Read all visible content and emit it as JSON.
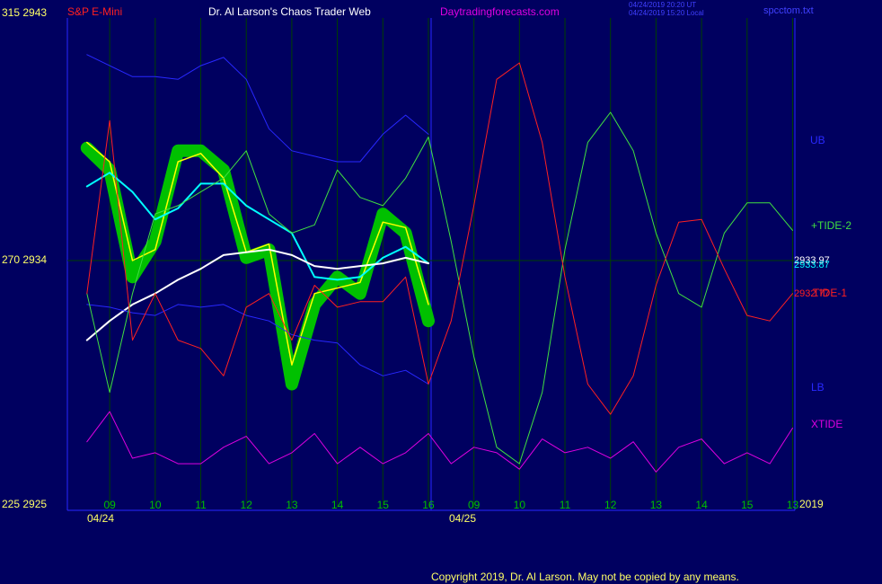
{
  "chart_data": {
    "type": "line",
    "title": "Dr. Al Larson's Chaos Trader Web",
    "symbol": "S&P E-Mini",
    "site": "Daytradingforecasts.com",
    "timestamps": [
      "04/24/2019 20:20 UT",
      "04/24/2019 15:20 Local"
    ],
    "file": "spcctom.txt",
    "copyright": "Copyright 2019, Dr. Al Larson. May not be copied by any means.",
    "dates": [
      "04/24",
      "04/25",
      "2019"
    ],
    "annotations": [
      "2933.97",
      "2933.87",
      "2932.77"
    ],
    "x": [
      -0.5,
      0,
      0.5,
      1,
      1.5,
      2,
      2.5,
      3,
      3.5,
      4,
      4.5,
      5,
      5.5,
      6,
      6.5,
      7,
      7.5,
      8,
      8.5,
      9,
      9.5,
      10,
      10.5,
      11,
      11.5,
      12,
      12.5,
      13,
      13.5,
      14,
      14.5,
      15
    ],
    "xlim": [
      -0.93,
      15.05
    ],
    "xticks": [
      {
        "value": 0,
        "label": "09"
      },
      {
        "value": 1,
        "label": "10"
      },
      {
        "value": 2,
        "label": "11"
      },
      {
        "value": 3,
        "label": "12"
      },
      {
        "value": 4,
        "label": "13"
      },
      {
        "value": 5,
        "label": "14"
      },
      {
        "value": 6,
        "label": "15"
      },
      {
        "value": 7,
        "label": "16"
      },
      {
        "value": 8,
        "label": "09"
      },
      {
        "value": 9,
        "label": "10"
      },
      {
        "value": 10,
        "label": "11"
      },
      {
        "value": 11,
        "label": "12"
      },
      {
        "value": 12,
        "label": "13"
      },
      {
        "value": 13,
        "label": "14"
      },
      {
        "value": 14,
        "label": "15"
      },
      {
        "value": 15,
        "label": "13"
      }
    ],
    "ylim": [
      2925,
      2943
    ],
    "yticks": [
      {
        "value": 2943,
        "label": "315  2943"
      },
      {
        "value": 2934,
        "label": "270  2934"
      },
      {
        "value": 2925,
        "label": "225  2925"
      }
    ],
    "grid": true,
    "series": [
      {
        "color": "#00c000",
        "width": 14,
        "values": [
          2938.1,
          2937.3,
          2933.4,
          2934.7,
          2938.0,
          2938.0,
          2937.3,
          2934.1,
          2934.4,
          2929.5,
          2932.4,
          2933.4,
          2932.8,
          2935.7,
          2935.0,
          2931.8,
          null,
          null,
          null,
          null,
          null,
          null,
          null,
          null,
          null,
          null,
          null,
          null,
          null,
          null,
          null,
          null
        ]
      },
      {
        "color": "#ffff00",
        "width": 1.5,
        "values": [
          2938.3,
          2937.6,
          2934.0,
          2934.4,
          2937.6,
          2937.9,
          2937.0,
          2934.3,
          2934.6,
          2930.2,
          2932.8,
          2933.0,
          2933.2,
          2935.4,
          2935.2,
          2932.4,
          null,
          null,
          null,
          null,
          null,
          null,
          null,
          null,
          null,
          null,
          null,
          null,
          null,
          null,
          null,
          null
        ]
      },
      {
        "color": "#00ffff",
        "width": 2,
        "values": [
          2936.7,
          2937.2,
          2936.5,
          2935.5,
          2935.9,
          2936.8,
          2936.8,
          2936.0,
          2935.5,
          2935.0,
          2933.4,
          2933.3,
          2933.4,
          2934.1,
          2934.5,
          2933.9,
          null,
          null,
          null,
          null,
          null,
          null,
          null,
          null,
          null,
          null,
          null,
          null,
          null,
          null,
          null,
          null
        ]
      },
      {
        "color": "#ffffff",
        "width": 2,
        "values": [
          2931.1,
          2931.8,
          2932.4,
          2932.8,
          2933.3,
          2933.7,
          2934.2,
          2934.3,
          2934.4,
          2934.2,
          2933.8,
          2933.7,
          2933.8,
          2933.9,
          2934.1,
          2933.9,
          null,
          null,
          null,
          null,
          null,
          null,
          null,
          null,
          null,
          null,
          null,
          null,
          null,
          null,
          null,
          null
        ]
      },
      {
        "name": "UB",
        "color": "#2828ff",
        "width": 1,
        "values": [
          2941.5,
          2941.1,
          2940.7,
          2940.7,
          2940.6,
          2941.1,
          2941.4,
          2940.6,
          2938.8,
          2938.0,
          2937.8,
          2937.6,
          2937.6,
          2938.6,
          2939.3,
          2938.6,
          null,
          null,
          null,
          null,
          null,
          null,
          null,
          null,
          null,
          null,
          null,
          null,
          null,
          null,
          null,
          null
        ]
      },
      {
        "name": "LB",
        "color": "#2828ff",
        "width": 1,
        "values": [
          2932.4,
          2932.3,
          2932.1,
          2932.0,
          2932.4,
          2932.3,
          2932.4,
          2932.0,
          2931.8,
          2931.3,
          2931.1,
          2931.0,
          2930.2,
          2929.8,
          2930.0,
          2929.5,
          null,
          null,
          null,
          null,
          null,
          null,
          null,
          null,
          null,
          null,
          null,
          null,
          null,
          null,
          null,
          null
        ]
      },
      {
        "name": "+TIDE-2",
        "color": "#40e040",
        "width": 1,
        "values": [
          2932.8,
          2929.2,
          2932.8,
          2935.7,
          2936.0,
          2936.5,
          2937.0,
          2938.0,
          2935.7,
          2935.0,
          2935.3,
          2937.3,
          2936.3,
          2936.0,
          2937.0,
          2938.5,
          2934.7,
          2930.5,
          2927.2,
          2926.6,
          2929.2,
          2934.4,
          2938.3,
          2939.4,
          2938.0,
          2935.0,
          2932.8,
          2932.3,
          2935.0,
          2936.1,
          2936.1,
          2935.1
        ]
      },
      {
        "name": "TIDE-1",
        "color": "#ff2020",
        "width": 1,
        "values": [
          2932.8,
          2939.1,
          2931.1,
          2932.8,
          2931.1,
          2930.8,
          2929.8,
          2932.3,
          2932.8,
          2931.1,
          2933.1,
          2932.3,
          2932.5,
          2932.5,
          2933.4,
          2929.5,
          2931.8,
          2936.0,
          2940.6,
          2941.2,
          2938.3,
          2933.4,
          2929.5,
          2928.4,
          2929.8,
          2933.1,
          2935.4,
          2935.5,
          2933.7,
          2932.0,
          2931.8,
          2932.8
        ]
      },
      {
        "name": "XTIDE",
        "color": "#e000e0",
        "width": 1,
        "values": [
          2927.4,
          2928.5,
          2926.8,
          2927.0,
          2926.6,
          2926.6,
          2927.2,
          2927.6,
          2926.6,
          2927.0,
          2927.7,
          2926.6,
          2927.2,
          2926.6,
          2927.0,
          2927.7,
          2926.6,
          2927.2,
          2927.0,
          2926.4,
          2927.5,
          2927.0,
          2927.2,
          2926.8,
          2927.4,
          2926.3,
          2927.2,
          2927.5,
          2926.6,
          2927.0,
          2926.6,
          2927.9
        ]
      }
    ]
  }
}
